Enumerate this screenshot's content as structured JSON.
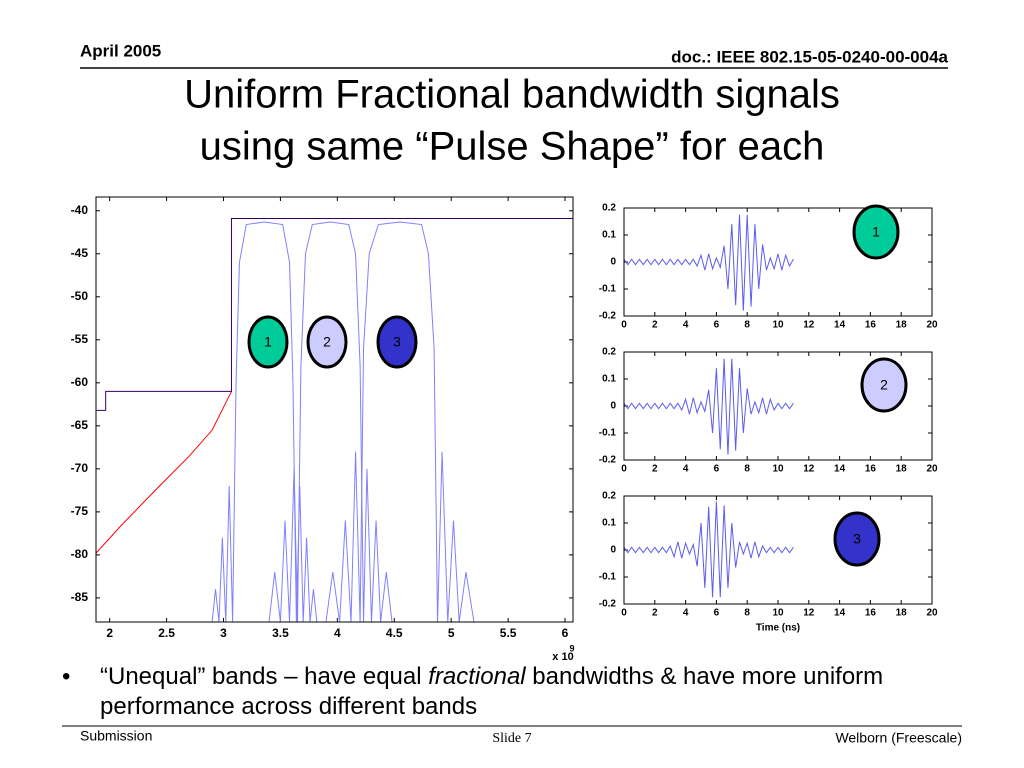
{
  "header": {
    "date": "April 2005",
    "doc": "doc.: IEEE 802.15-05-0240-00-004a"
  },
  "title": [
    "Uniform Fractional bandwidth signals",
    "using same “Pulse Shape” for each"
  ],
  "bullet": {
    "before": "“Unequal” bands – have equal",
    "emphasis": "fractional",
    "after": "bandwidths & have more uniform performance across different bands"
  },
  "footer": {
    "left": "Submission",
    "center": "Slide 7",
    "right": "Welborn (Freescale)"
  },
  "chart_data": [
    {
      "type": "line",
      "xlim": [
        1.88,
        6.07
      ],
      "ylim": [
        -87.8,
        -38.4
      ],
      "xticks": [
        2,
        2.5,
        3,
        3.5,
        4,
        4.5,
        5,
        5.5,
        6
      ],
      "yticks": [
        -40,
        -45,
        -50,
        -55,
        -60,
        -65,
        -70,
        -75,
        -80,
        -85
      ],
      "x_scale": "x 10",
      "x_scale_exponent": "9",
      "grid": false,
      "series": [
        {
          "color": "#8080ff",
          "x": [
            2.9,
            2.93,
            2.96,
            2.99,
            3.02,
            3.05,
            3.08,
            3.11,
            3.14,
            3.2,
            3.36,
            3.52,
            3.58,
            3.61,
            3.64,
            3.67,
            3.7,
            3.73,
            3.76,
            3.79,
            3.82
          ],
          "values": [
            -87.8,
            -84,
            -87.8,
            -78,
            -87.8,
            -72,
            -87.8,
            -60,
            -46,
            -41.6,
            -41.3,
            -41.6,
            -46,
            -60,
            -87.8,
            -72,
            -87.8,
            -78,
            -87.8,
            -84,
            -87.8
          ]
        },
        {
          "color": "#8080ff",
          "x": [
            3.4,
            3.45,
            3.5,
            3.54,
            3.58,
            3.62,
            3.65,
            3.68,
            3.72,
            3.78,
            3.94,
            4.1,
            4.16,
            4.2,
            4.23,
            4.26,
            4.3,
            4.34,
            4.38,
            4.43,
            4.48
          ],
          "values": [
            -87.8,
            -82,
            -87.8,
            -76,
            -87.8,
            -70,
            -87.8,
            -58,
            -45,
            -41.6,
            -41.3,
            -41.6,
            -45,
            -58,
            -87.8,
            -70,
            -87.8,
            -76,
            -87.8,
            -82,
            -87.8
          ]
        },
        {
          "color": "#8080ff",
          "x": [
            3.9,
            3.96,
            4.02,
            4.07,
            4.12,
            4.16,
            4.2,
            4.23,
            4.28,
            4.36,
            4.55,
            4.74,
            4.8,
            4.85,
            4.88,
            4.92,
            4.97,
            5.02,
            5.07,
            5.13,
            5.2
          ],
          "values": [
            -87.8,
            -82,
            -87.8,
            -76,
            -87.8,
            -68,
            -87.8,
            -56,
            -45,
            -41.6,
            -41.3,
            -41.6,
            -45,
            -56,
            -87.8,
            -68,
            -87.8,
            -76,
            -87.8,
            -82,
            -87.8
          ]
        },
        {
          "color": "#ff0000",
          "x": [
            1.88,
            2.1,
            2.4,
            2.7,
            2.9,
            3.07
          ],
          "values": [
            -79.8,
            -76.6,
            -72.5,
            -68.5,
            -65.5,
            -61
          ]
        },
        {
          "color": "#330066",
          "x": [
            1.88,
            1.965,
            1.965,
            3.07,
            3.07,
            6.07
          ],
          "values": [
            -63.2,
            -63.2,
            -61,
            -61,
            -40.9,
            -40.9
          ]
        }
      ],
      "annotations": [
        {
          "label": "1",
          "color": "#00cc99"
        },
        {
          "label": "2",
          "color": "#ccccff"
        },
        {
          "label": "3",
          "color": "#3333cc"
        }
      ]
    },
    {
      "type": "line",
      "xlim": [
        0,
        20
      ],
      "ylim": [
        -0.2,
        0.2
      ],
      "xticks": [
        0,
        2,
        4,
        6,
        8,
        10,
        12,
        14,
        16,
        18,
        20
      ],
      "yticks": [
        0.2,
        0.1,
        0,
        -0.1,
        -0.2
      ],
      "grid": false,
      "x": [
        0,
        0.25,
        0.5,
        0.75,
        1,
        1.25,
        1.5,
        1.75,
        2,
        2.25,
        2.5,
        2.75,
        3,
        3.25,
        3.5,
        3.75,
        4,
        4.25,
        4.5,
        4.75,
        5,
        5.25,
        5.5,
        5.75,
        6,
        6.25,
        6.5,
        6.75,
        7,
        7.25,
        7.5,
        7.75,
        8,
        8.25,
        8.5,
        8.75,
        9,
        9.25,
        9.5,
        9.75,
        10,
        10.25,
        10.5,
        10.75,
        11
      ],
      "series": [
        {
          "color": "#5c5cee",
          "values": [
            0.01,
            -0.01,
            0.01,
            -0.01,
            0.01,
            -0.01,
            0.01,
            -0.01,
            0.01,
            -0.01,
            0.01,
            -0.01,
            0.01,
            -0.01,
            0.01,
            -0.01,
            0.01,
            -0.01,
            0.01,
            -0.015,
            0.025,
            -0.03,
            0.03,
            -0.025,
            0.015,
            -0.02,
            0.06,
            -0.1,
            0.14,
            -0.16,
            0.175,
            -0.18,
            0.175,
            -0.165,
            0.14,
            -0.1,
            0.065,
            -0.03,
            0.015,
            -0.025,
            0.03,
            -0.03,
            0.025,
            -0.015,
            0.01
          ]
        }
      ],
      "annotations": [
        {
          "label": "1",
          "color": "#00cc99"
        }
      ]
    },
    {
      "type": "line",
      "xlim": [
        0,
        20
      ],
      "ylim": [
        -0.2,
        0.2
      ],
      "xticks": [
        0,
        2,
        4,
        6,
        8,
        10,
        12,
        14,
        16,
        18,
        20
      ],
      "yticks": [
        0.2,
        0.1,
        0,
        -0.1,
        -0.2
      ],
      "grid": false,
      "x": [
        0,
        0.25,
        0.5,
        0.75,
        1,
        1.25,
        1.5,
        1.75,
        2,
        2.25,
        2.5,
        2.75,
        3,
        3.25,
        3.5,
        3.75,
        4,
        4.25,
        4.5,
        4.75,
        5,
        5.25,
        5.5,
        5.75,
        6,
        6.25,
        6.5,
        6.75,
        7,
        7.25,
        7.5,
        7.75,
        8,
        8.25,
        8.5,
        8.75,
        9,
        9.25,
        9.5,
        9.75,
        10,
        10.25,
        10.5,
        10.75,
        11
      ],
      "series": [
        {
          "color": "#5c5cee",
          "values": [
            0.01,
            -0.01,
            0.01,
            -0.01,
            0.01,
            -0.01,
            0.01,
            -0.01,
            0.01,
            -0.01,
            0.01,
            -0.01,
            0.01,
            -0.01,
            0.01,
            -0.015,
            0.025,
            -0.03,
            0.03,
            -0.025,
            0.015,
            -0.02,
            0.06,
            -0.1,
            0.14,
            -0.16,
            0.175,
            -0.18,
            0.175,
            -0.165,
            0.14,
            -0.1,
            0.065,
            -0.03,
            0.015,
            -0.025,
            0.03,
            -0.03,
            0.025,
            -0.015,
            0.01,
            -0.01,
            0.01,
            -0.01,
            0.01
          ]
        }
      ],
      "annotations": [
        {
          "label": "2",
          "color": "#ccccff"
        }
      ]
    },
    {
      "type": "line",
      "xlim": [
        0,
        20
      ],
      "ylim": [
        -0.2,
        0.2
      ],
      "xticks": [
        0,
        2,
        4,
        6,
        8,
        10,
        12,
        14,
        16,
        18,
        20
      ],
      "yticks": [
        0.2,
        0.1,
        0,
        -0.1,
        -0.2
      ],
      "xlabel": "Time (ns)",
      "grid": false,
      "x": [
        0,
        0.25,
        0.5,
        0.75,
        1,
        1.25,
        1.5,
        1.75,
        2,
        2.25,
        2.5,
        2.75,
        3,
        3.25,
        3.5,
        3.75,
        4,
        4.25,
        4.5,
        4.75,
        5,
        5.25,
        5.5,
        5.75,
        6,
        6.25,
        6.5,
        6.75,
        7,
        7.25,
        7.5,
        7.75,
        8,
        8.25,
        8.5,
        8.75,
        9,
        9.25,
        9.5,
        9.75,
        10,
        10.25,
        10.5,
        10.75,
        11
      ],
      "series": [
        {
          "color": "#5c5cee",
          "values": [
            0.01,
            -0.01,
            0.01,
            -0.01,
            0.01,
            -0.01,
            0.01,
            -0.01,
            0.01,
            -0.01,
            0.01,
            -0.01,
            0.015,
            -0.025,
            0.03,
            -0.03,
            0.025,
            -0.015,
            0.02,
            -0.06,
            0.1,
            -0.14,
            0.16,
            -0.175,
            0.18,
            -0.175,
            0.165,
            -0.14,
            0.1,
            -0.065,
            0.03,
            -0.015,
            0.025,
            -0.03,
            0.03,
            -0.025,
            0.015,
            -0.01,
            0.01,
            -0.01,
            0.01,
            -0.01,
            0.01,
            -0.01,
            0.01
          ]
        }
      ],
      "annotations": [
        {
          "label": "3",
          "color": "#3333cc"
        }
      ]
    }
  ]
}
